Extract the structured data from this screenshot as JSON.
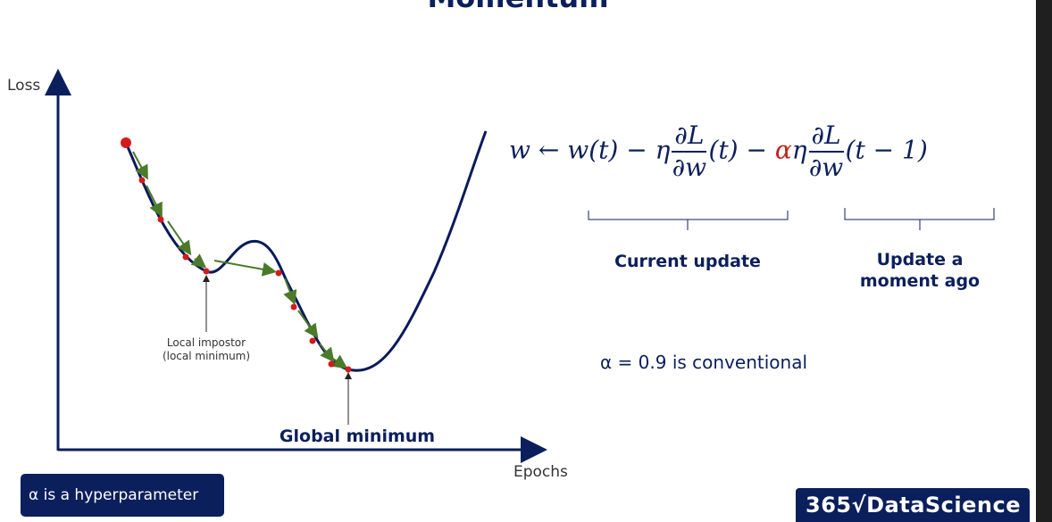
{
  "slide": {
    "title": "Momentum",
    "axes": {
      "y_label": "Loss",
      "x_label": "Epochs"
    },
    "annotations": {
      "local_min_line1": "Local impostor",
      "local_min_line2": "(local minimum)",
      "global_min": "Global minimum"
    },
    "formula": {
      "lhs": "w",
      "arrow": "←",
      "term1": "w(t) − η",
      "frac_num": "∂L",
      "frac_den": "∂w",
      "term2": "(t) −",
      "alpha": "α",
      "eta": "η",
      "term3": "(t − 1)"
    },
    "braces": {
      "current_update": "Current update",
      "moment_ago_line1": "Update a",
      "moment_ago_line2": "moment ago"
    },
    "conventional_note": "α = 0.9 is conventional",
    "badge": "α is a hyperparameter",
    "logo": "365√DataScience"
  },
  "colors": {
    "navy": "#0b1f5c",
    "curve": "#0a1a5a",
    "point": "#d41b1b",
    "step_arrow": "#4a7a2a",
    "alpha_red": "#c0241a"
  }
}
